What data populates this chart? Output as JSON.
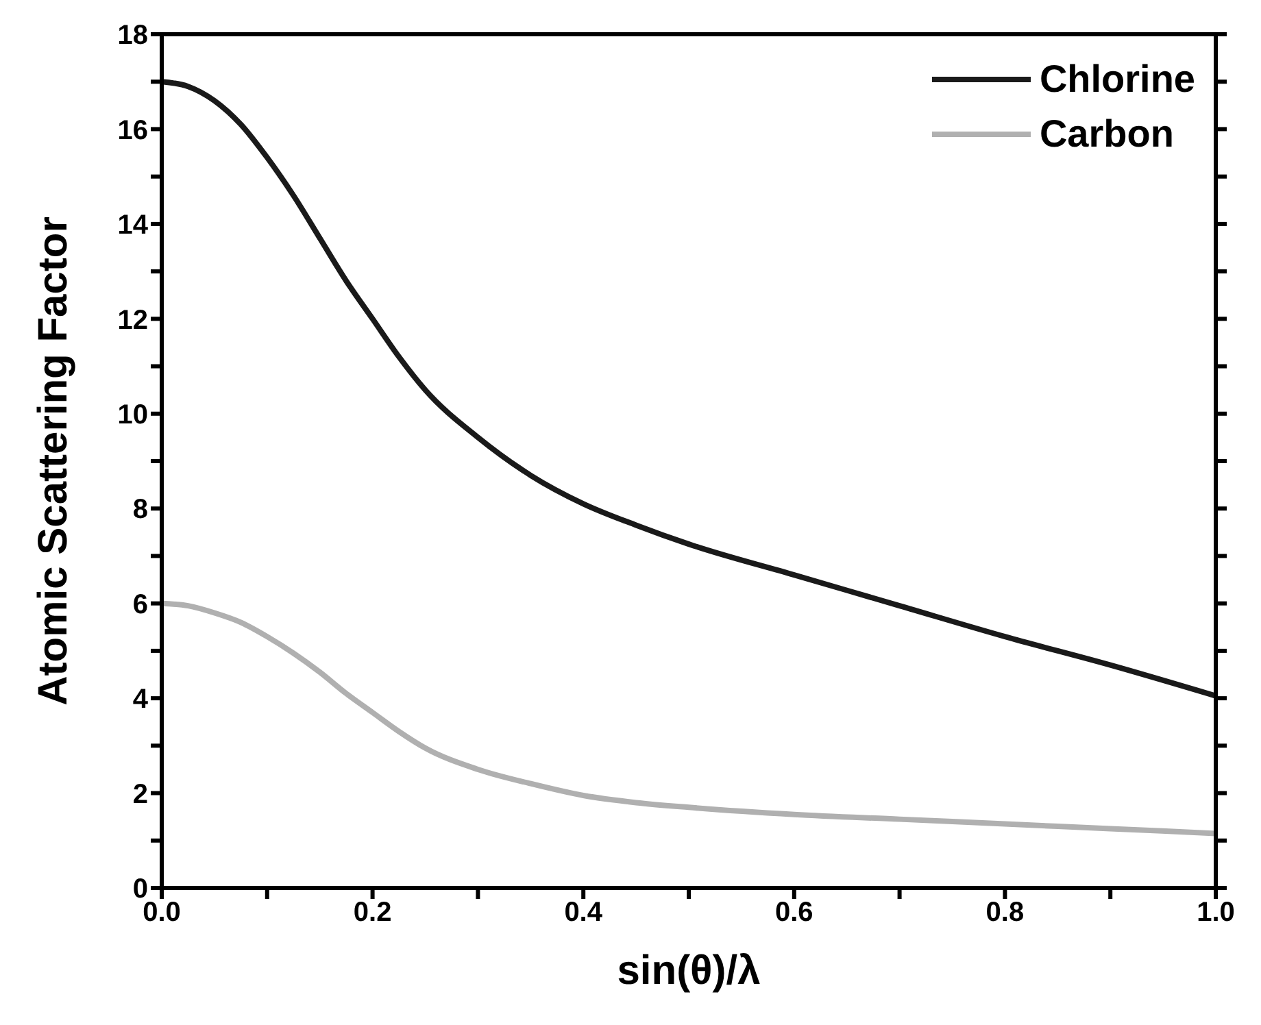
{
  "chart_data": {
    "type": "line",
    "xlabel": "sin(θ)/λ",
    "ylabel": "Atomic Scattering Factor",
    "xlim": [
      0,
      1
    ],
    "ylim": [
      0,
      18
    ],
    "xticks": [
      {
        "value": 0,
        "label": "0.0"
      },
      {
        "value": 0.1,
        "label": null
      },
      {
        "value": 0.2,
        "label": "0.2"
      },
      {
        "value": 0.3,
        "label": null
      },
      {
        "value": 0.4,
        "label": "0.4"
      },
      {
        "value": 0.5,
        "label": null
      },
      {
        "value": 0.6,
        "label": "0.6"
      },
      {
        "value": 0.7,
        "label": null
      },
      {
        "value": 0.8,
        "label": "0.8"
      },
      {
        "value": 0.9,
        "label": null
      },
      {
        "value": 1,
        "label": "1.0"
      }
    ],
    "yticks": [
      0,
      {
        "value": 1,
        "label": null
      },
      2,
      {
        "value": 3,
        "label": null
      },
      4,
      {
        "value": 5,
        "label": null
      },
      6,
      {
        "value": 7,
        "label": null
      },
      8,
      {
        "value": 9,
        "label": null
      },
      10,
      {
        "value": 11,
        "label": null
      },
      12,
      {
        "value": 13,
        "label": null
      },
      14,
      {
        "value": 15,
        "label": null
      },
      16,
      {
        "value": 17,
        "label": null
      },
      18
    ],
    "x": [
      0,
      0.025,
      0.05,
      0.075,
      0.1,
      0.125,
      0.15,
      0.175,
      0.2,
      0.225,
      0.25,
      0.3,
      0.35,
      0.4,
      0.45,
      0.5,
      0.6,
      0.7,
      0.8,
      0.9,
      1.0
    ],
    "series": [
      {
        "name": "Chlorine",
        "color": "#1a1a1a",
        "values": [
          17.0,
          16.9,
          16.6,
          16.1,
          15.4,
          14.6,
          13.7,
          12.8,
          12.0,
          11.2,
          10.5,
          9.5,
          8.7,
          8.1,
          7.65,
          7.25,
          6.6,
          5.95,
          5.3,
          4.7,
          4.05
        ]
      },
      {
        "name": "Carbon",
        "color": "#b0b0b0",
        "values": [
          6.0,
          5.95,
          5.8,
          5.6,
          5.3,
          4.95,
          4.55,
          4.1,
          3.7,
          3.3,
          2.95,
          2.5,
          2.2,
          1.95,
          1.8,
          1.7,
          1.55,
          1.45,
          1.35,
          1.25,
          1.15
        ]
      }
    ],
    "legend": "top right",
    "marker": "none",
    "line_style": "solid"
  }
}
